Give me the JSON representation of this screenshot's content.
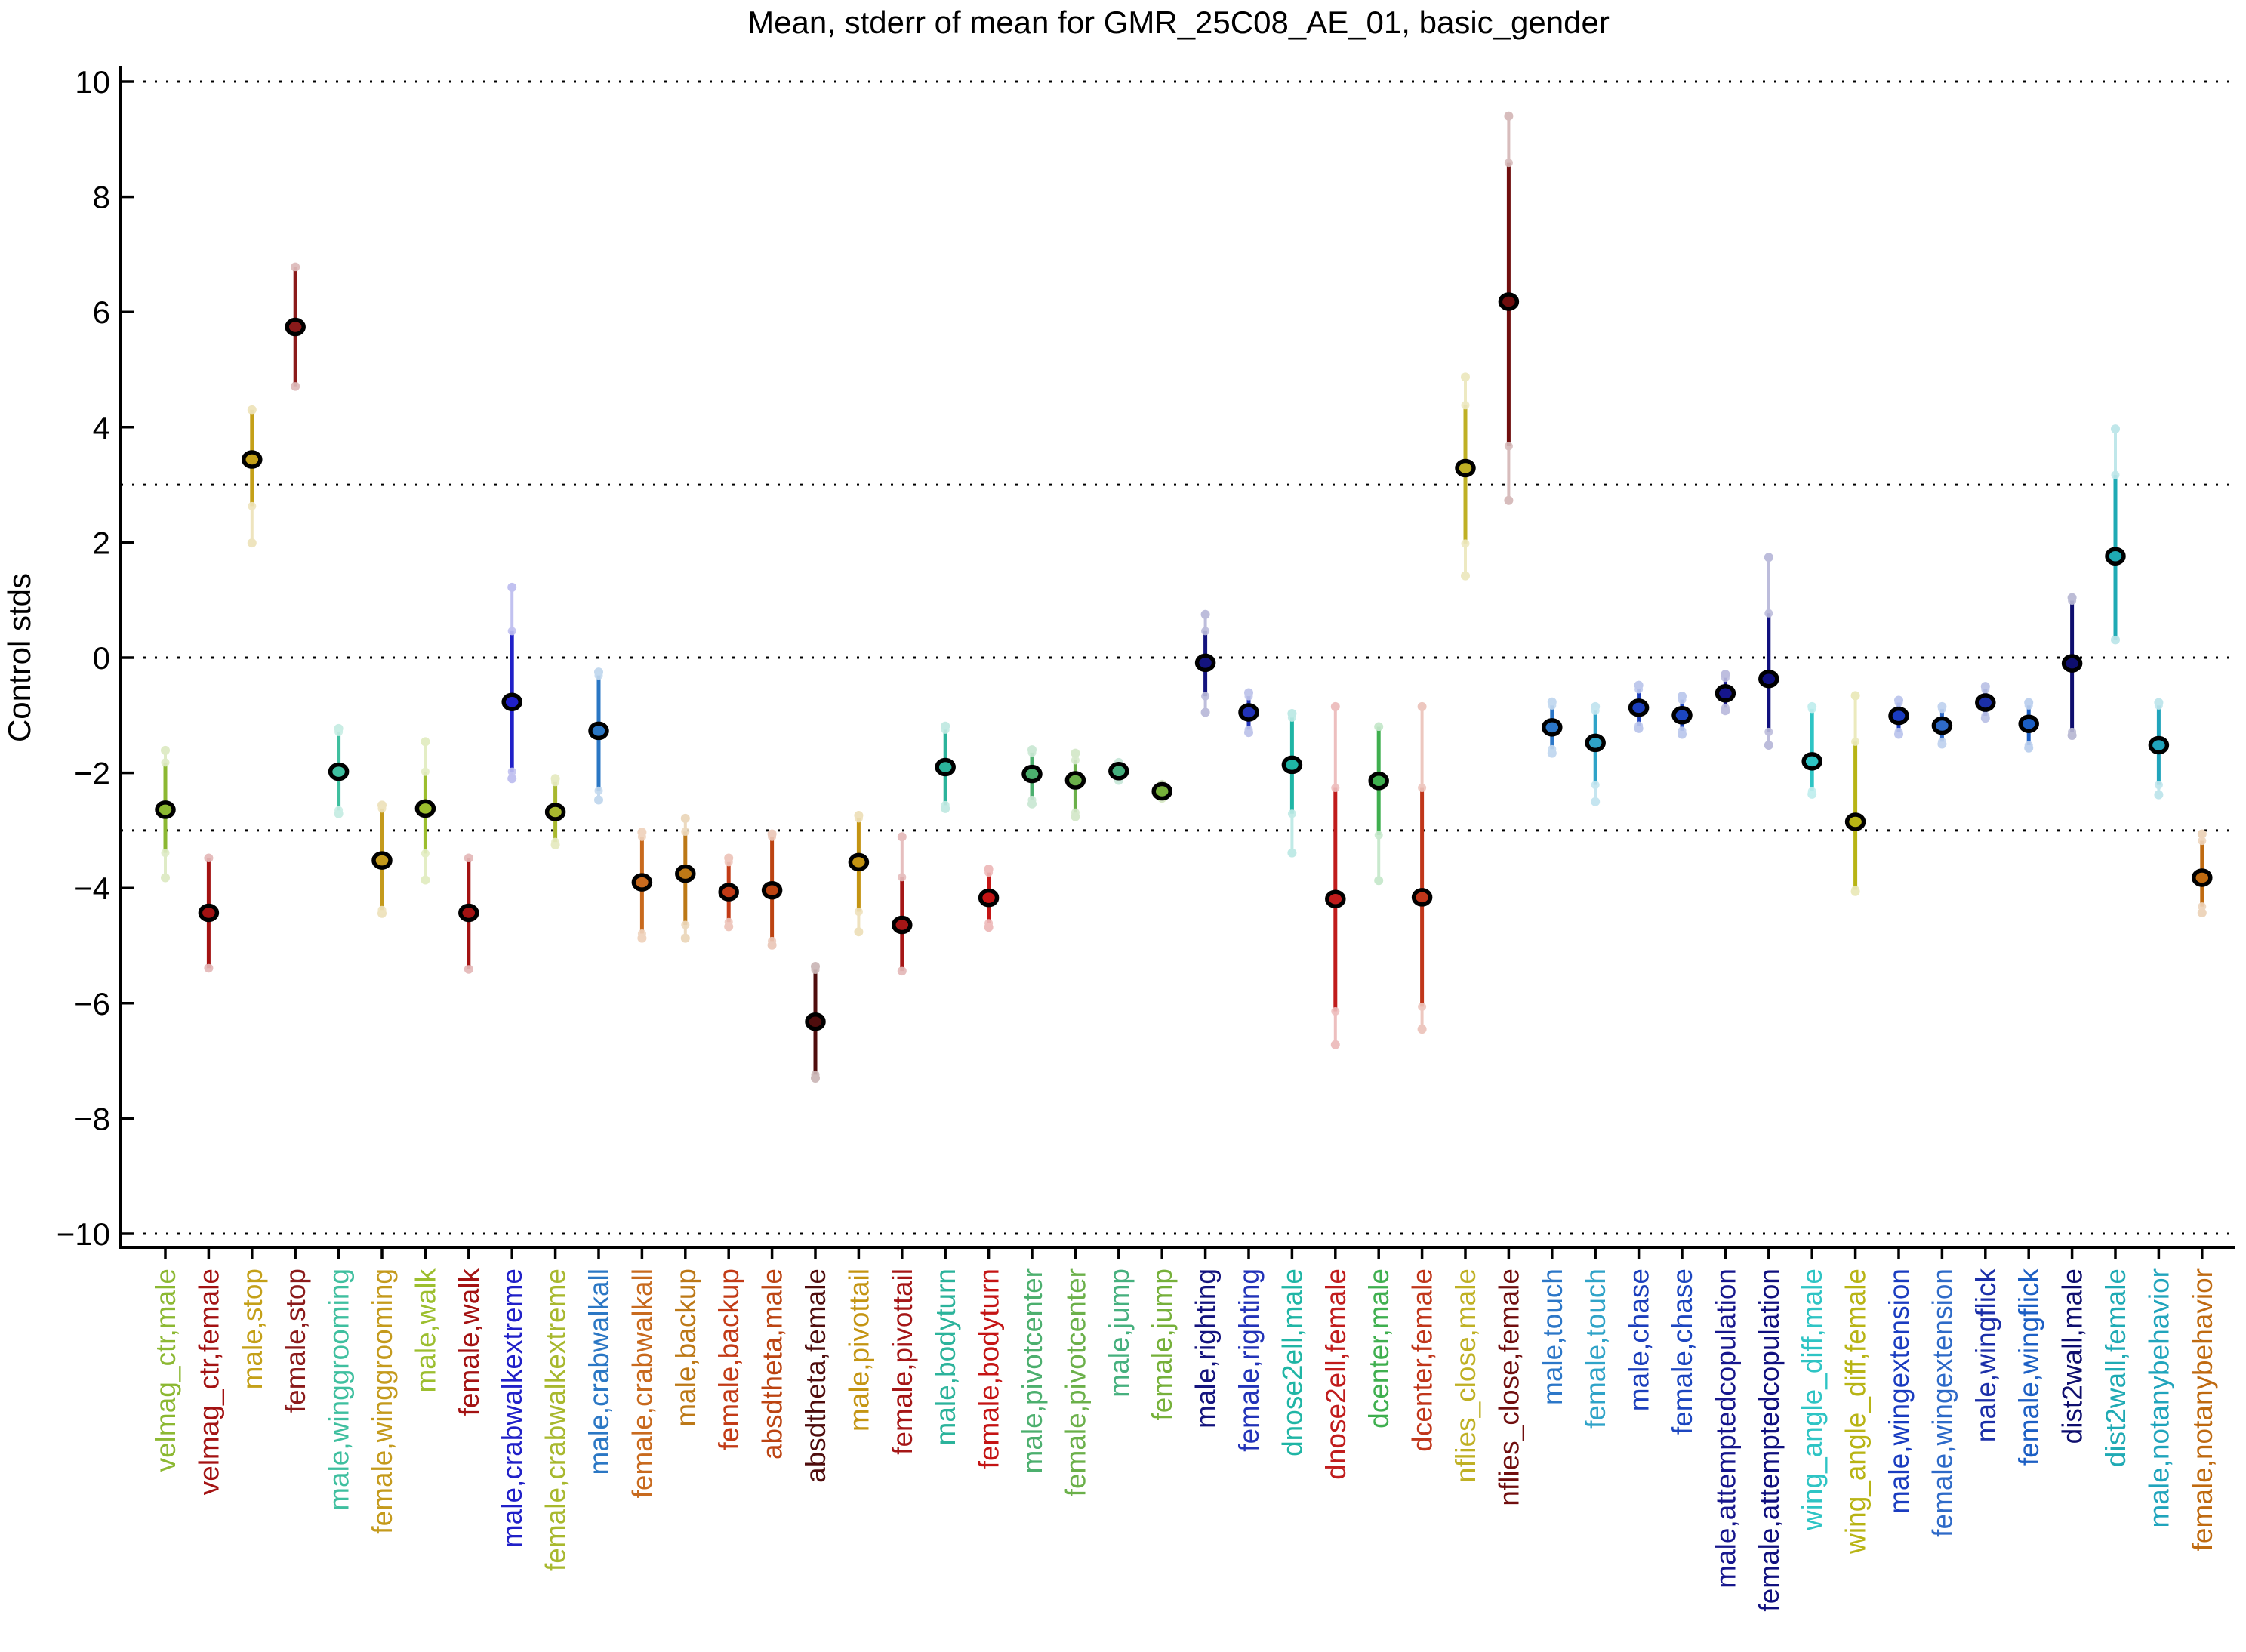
{
  "title": "Mean, stderr of mean for GMR_25C08_AE_01, basic_gender",
  "ylabel": "Control stds",
  "chart_data": {
    "type": "scatter",
    "title": "Mean, stderr of mean for GMR_25C08_AE_01, basic_gender",
    "ylabel": "Control stds",
    "xlabel": "",
    "ylim": [
      -10,
      10
    ],
    "grid": "dotted horizontal reference lines",
    "legend": "none",
    "yticks": [
      -10,
      -8,
      -6,
      -4,
      -2,
      0,
      2,
      4,
      6,
      8,
      10
    ],
    "ytick_labels": [
      "−10",
      "−8",
      "−6",
      "−4",
      "−2",
      "0",
      "2",
      "4",
      "6",
      "8",
      "10"
    ],
    "reference_lines": [
      10,
      3,
      0,
      -3,
      -10
    ],
    "points": [
      {
        "label": "velmag_ctr,male",
        "color": "#8CB832",
        "mean": -2.64,
        "err_inner": [
          -3.39,
          -1.82
        ],
        "err_outer": [
          -3.82,
          -1.61
        ]
      },
      {
        "label": "velmag_ctr,female",
        "color": "#A31212",
        "mean": -4.43,
        "err_inner": [
          -5.39,
          -3.48
        ],
        "err_outer": [
          -5.39,
          -3.48
        ]
      },
      {
        "label": "male,stop",
        "color": "#C4A018",
        "mean": 3.44,
        "err_inner": [
          2.63,
          4.3
        ],
        "err_outer": [
          1.99,
          4.3
        ]
      },
      {
        "label": "female,stop",
        "color": "#8B1A1A",
        "mean": 5.74,
        "err_inner": [
          4.71,
          6.78
        ],
        "err_outer": [
          4.71,
          6.78
        ]
      },
      {
        "label": "male,winggrooming",
        "color": "#3FBF9F",
        "mean": -1.98,
        "err_inner": [
          -2.65,
          -1.29
        ],
        "err_outer": [
          -2.71,
          -1.23
        ]
      },
      {
        "label": "female,winggrooming",
        "color": "#C49A1C",
        "mean": -3.52,
        "err_inner": [
          -4.38,
          -2.62
        ],
        "err_outer": [
          -4.44,
          -2.56
        ]
      },
      {
        "label": "male,walk",
        "color": "#9CBE2E",
        "mean": -2.62,
        "err_inner": [
          -3.4,
          -1.98
        ],
        "err_outer": [
          -3.86,
          -1.46
        ]
      },
      {
        "label": "female,walk",
        "color": "#A31212",
        "mean": -4.43,
        "err_inner": [
          -5.41,
          -3.48
        ],
        "err_outer": [
          -5.41,
          -3.48
        ]
      },
      {
        "label": "male,crabwalkextreme",
        "color": "#2020C8",
        "mean": -0.77,
        "err_inner": [
          -1.98,
          0.46
        ],
        "err_outer": [
          -2.1,
          1.22
        ]
      },
      {
        "label": "female,crabwalkextreme",
        "color": "#A8B82E",
        "mean": -2.68,
        "err_inner": [
          -3.2,
          -2.16
        ],
        "err_outer": [
          -3.25,
          -2.1
        ]
      },
      {
        "label": "male,crabwalkall",
        "color": "#2B77C4",
        "mean": -1.27,
        "err_inner": [
          -2.31,
          -0.31
        ],
        "err_outer": [
          -2.47,
          -0.25
        ]
      },
      {
        "label": "female,crabwalkall",
        "color": "#C86A1E",
        "mean": -3.9,
        "err_inner": [
          -4.79,
          -3.11
        ],
        "err_outer": [
          -4.87,
          -3.03
        ]
      },
      {
        "label": "male,backup",
        "color": "#BC7816",
        "mean": -3.75,
        "err_inner": [
          -4.64,
          -3.02
        ],
        "err_outer": [
          -4.87,
          -2.79
        ]
      },
      {
        "label": "female,backup",
        "color": "#C23B16",
        "mean": -4.07,
        "err_inner": [
          -4.59,
          -3.55
        ],
        "err_outer": [
          -4.67,
          -3.48
        ]
      },
      {
        "label": "absdtheta,male",
        "color": "#BC4412",
        "mean": -4.04,
        "err_inner": [
          -4.92,
          -3.11
        ],
        "err_outer": [
          -4.99,
          -3.06
        ]
      },
      {
        "label": "absdtheta,female",
        "color": "#4F0D0D",
        "mean": -6.32,
        "err_inner": [
          -7.24,
          -5.42
        ],
        "err_outer": [
          -7.3,
          -5.36
        ]
      },
      {
        "label": "male,pivottail",
        "color": "#C49412",
        "mean": -3.55,
        "err_inner": [
          -4.41,
          -2.79
        ],
        "err_outer": [
          -4.76,
          -2.74
        ]
      },
      {
        "label": "female,pivottail",
        "color": "#A51616",
        "mean": -4.64,
        "err_inner": [
          -5.44,
          -3.81
        ],
        "err_outer": [
          -5.44,
          -3.11
        ]
      },
      {
        "label": "male,bodyturn",
        "color": "#2BB39B",
        "mean": -1.9,
        "err_inner": [
          -2.56,
          -1.25
        ],
        "err_outer": [
          -2.62,
          -1.19
        ]
      },
      {
        "label": "female,bodyturn",
        "color": "#C41414",
        "mean": -4.17,
        "err_inner": [
          -4.61,
          -3.73
        ],
        "err_outer": [
          -4.68,
          -3.67
        ]
      },
      {
        "label": "male,pivotcenter",
        "color": "#4CAF6E",
        "mean": -2.02,
        "err_inner": [
          -2.47,
          -1.65
        ],
        "err_outer": [
          -2.54,
          -1.6
        ]
      },
      {
        "label": "female,pivotcenter",
        "color": "#6BB04A",
        "mean": -2.13,
        "err_inner": [
          -2.69,
          -1.78
        ],
        "err_outer": [
          -2.76,
          -1.66
        ]
      },
      {
        "label": "male,jump",
        "color": "#46B07E",
        "mean": -1.97,
        "err_inner": [
          -2.08,
          -1.87
        ],
        "err_outer": [
          -2.13,
          -1.82
        ]
      },
      {
        "label": "female,jump",
        "color": "#76B03A",
        "mean": -2.32,
        "err_inner": [
          -2.4,
          -2.24
        ],
        "err_outer": [
          -2.44,
          -2.2
        ]
      },
      {
        "label": "male,righting",
        "color": "#14147E",
        "mean": -0.09,
        "err_inner": [
          -0.67,
          0.46
        ],
        "err_outer": [
          -0.95,
          0.75
        ]
      },
      {
        "label": "female,righting",
        "color": "#2233B8",
        "mean": -0.95,
        "err_inner": [
          -1.25,
          -0.67
        ],
        "err_outer": [
          -1.3,
          -0.61
        ]
      },
      {
        "label": "dnose2ell,male",
        "color": "#1FB5A5",
        "mean": -1.86,
        "err_inner": [
          -2.71,
          -1.04
        ],
        "err_outer": [
          -3.39,
          -0.97
        ]
      },
      {
        "label": "dnose2ell,female",
        "color": "#C01C1C",
        "mean": -4.19,
        "err_inner": [
          -6.14,
          -2.26
        ],
        "err_outer": [
          -6.72,
          -0.85
        ]
      },
      {
        "label": "dcenter,male",
        "color": "#3FAF4F",
        "mean": -2.14,
        "err_inner": [
          -3.08,
          -1.2
        ],
        "err_outer": [
          -3.87,
          -1.2
        ]
      },
      {
        "label": "dcenter,female",
        "color": "#C0361A",
        "mean": -4.16,
        "err_inner": [
          -6.06,
          -2.26
        ],
        "err_outer": [
          -6.45,
          -0.85
        ]
      },
      {
        "label": "nflies_close,male",
        "color": "#BFB024",
        "mean": 3.29,
        "err_inner": [
          1.98,
          4.38
        ],
        "err_outer": [
          1.42,
          4.87
        ]
      },
      {
        "label": "nflies_close,female",
        "color": "#700E0E",
        "mean": 6.18,
        "err_inner": [
          3.67,
          8.59
        ],
        "err_outer": [
          2.73,
          9.4
        ]
      },
      {
        "label": "male,touch",
        "color": "#2C77C8",
        "mean": -1.21,
        "err_inner": [
          -1.59,
          -0.83
        ],
        "err_outer": [
          -1.66,
          -0.77
        ]
      },
      {
        "label": "female,touch",
        "color": "#2FA3C8",
        "mean": -1.48,
        "err_inner": [
          -2.21,
          -0.92
        ],
        "err_outer": [
          -2.5,
          -0.85
        ]
      },
      {
        "label": "male,chase",
        "color": "#1C3FBC",
        "mean": -0.87,
        "err_inner": [
          -1.18,
          -0.55
        ],
        "err_outer": [
          -1.23,
          -0.48
        ]
      },
      {
        "label": "female,chase",
        "color": "#1C46C0",
        "mean": -1.0,
        "err_inner": [
          -1.27,
          -0.73
        ],
        "err_outer": [
          -1.33,
          -0.67
        ]
      },
      {
        "label": "male,attemptedcopulation",
        "color": "#16168C",
        "mean": -0.62,
        "err_inner": [
          -0.87,
          -0.35
        ],
        "err_outer": [
          -0.92,
          -0.29
        ]
      },
      {
        "label": "female,attemptedcopulation",
        "color": "#10107E",
        "mean": -0.37,
        "err_inner": [
          -1.29,
          0.77
        ],
        "err_outer": [
          -1.52,
          1.74
        ]
      },
      {
        "label": "wing_angle_diff,male",
        "color": "#2EC4C4",
        "mean": -1.8,
        "err_inner": [
          -2.32,
          -0.89
        ],
        "err_outer": [
          -2.37,
          -0.85
        ]
      },
      {
        "label": "wing_angle_diff,female",
        "color": "#B8B414",
        "mean": -2.85,
        "err_inner": [
          -4.03,
          -1.46
        ],
        "err_outer": [
          -4.06,
          -0.66
        ]
      },
      {
        "label": "male,wingextension",
        "color": "#1A3CC0",
        "mean": -1.01,
        "err_inner": [
          -1.29,
          -0.78
        ],
        "err_outer": [
          -1.33,
          -0.74
        ]
      },
      {
        "label": "female,wingextension",
        "color": "#2E6AC8",
        "mean": -1.18,
        "err_inner": [
          -1.46,
          -0.89
        ],
        "err_outer": [
          -1.5,
          -0.85
        ]
      },
      {
        "label": "male,wingflick",
        "color": "#1B2FA8",
        "mean": -0.78,
        "err_inner": [
          -1.01,
          -0.55
        ],
        "err_outer": [
          -1.05,
          -0.5
        ]
      },
      {
        "label": "female,wingflick",
        "color": "#1C5FC4",
        "mean": -1.15,
        "err_inner": [
          -1.52,
          -0.83
        ],
        "err_outer": [
          -1.57,
          -0.78
        ]
      },
      {
        "label": "dist2wall,male",
        "color": "#0E0E6E",
        "mean": -0.1,
        "err_inner": [
          -1.29,
          0.99
        ],
        "err_outer": [
          -1.35,
          1.04
        ]
      },
      {
        "label": "dist2wall,female",
        "color": "#1FAAB4",
        "mean": 1.76,
        "err_inner": [
          0.31,
          3.17
        ],
        "err_outer": [
          0.31,
          3.97
        ]
      },
      {
        "label": "male,notanybehavior",
        "color": "#20A4BC",
        "mean": -1.52,
        "err_inner": [
          -2.21,
          -0.83
        ],
        "err_outer": [
          -2.38,
          -0.78
        ]
      },
      {
        "label": "female,notanybehavior",
        "color": "#BF6A10",
        "mean": -3.82,
        "err_inner": [
          -4.32,
          -3.18
        ],
        "err_outer": [
          -4.43,
          -3.06
        ]
      }
    ]
  }
}
